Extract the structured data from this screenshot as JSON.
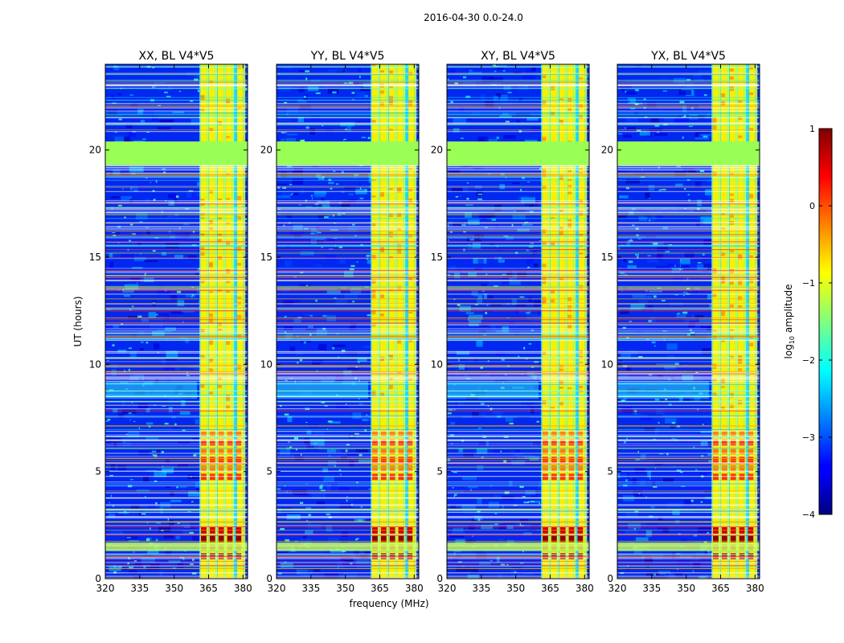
{
  "figure": {
    "suptitle": "2016-04-30 0.0-24.0"
  },
  "chart_data": {
    "type": "heatmap",
    "xlabel": "frequency (MHz)",
    "ylabel": "UT (hours)",
    "xlim": [
      320,
      382
    ],
    "ylim": [
      0,
      24
    ],
    "xticks": [
      "320",
      "335",
      "350",
      "365",
      "380"
    ],
    "yticks": [
      "0",
      "5",
      "10",
      "15",
      "20"
    ],
    "panels": [
      {
        "title": "XX, BL V4*V5"
      },
      {
        "title": "YY, BL V4*V5"
      },
      {
        "title": "XY, BL V4*V5"
      },
      {
        "title": "YX, BL V4*V5"
      }
    ],
    "colorbar": {
      "label": "log",
      "label_sub": "10",
      "label_rest": " amplitude",
      "range": [
        -4,
        1
      ],
      "ticks": [
        "−4",
        "−3",
        "−2",
        "−1",
        "0",
        "1"
      ],
      "colormap": "jet"
    },
    "saturated_band_hours": [
      19.3,
      20.4
    ],
    "rfi_band_mhz": [
      361,
      380
    ]
  }
}
